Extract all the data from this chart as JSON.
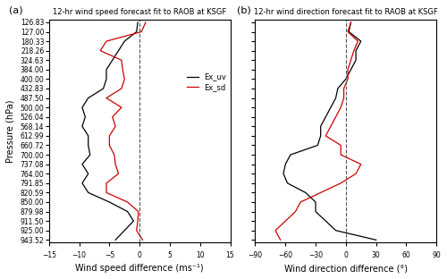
{
  "pressure_levels": [
    "126.83",
    "127.00",
    "180.33",
    "218.26",
    "324.63",
    "384.00",
    "400.00",
    "432.83",
    "487.50",
    "500.00",
    "526.04",
    "568.14",
    "612.99",
    "660.72",
    "700.00",
    "737.08",
    "764.00",
    "791.85",
    "820.59",
    "850.00",
    "879.98",
    "911.50",
    "925.00",
    "943.52"
  ],
  "ws_diff_uv": [
    -0.3,
    -0.5,
    -2.5,
    -3.5,
    -4.5,
    -5.5,
    -5.5,
    -6.0,
    -8.5,
    -9.5,
    -9.0,
    -9.5,
    -8.5,
    -8.5,
    -8.2,
    -9.5,
    -8.5,
    -9.5,
    -8.5,
    -5.0,
    -2.0,
    -1.0,
    -2.5,
    -4.0
  ],
  "ws_diff_sd": [
    1.0,
    0.3,
    -5.5,
    -6.5,
    -3.0,
    -2.8,
    -2.5,
    -3.0,
    -5.5,
    -3.0,
    -4.5,
    -4.0,
    -5.0,
    -5.0,
    -4.2,
    -4.0,
    -3.5,
    -5.5,
    -5.5,
    -2.0,
    -0.2,
    -0.3,
    -0.5,
    0.5
  ],
  "wd_diff_uv": [
    5.0,
    3.0,
    15.0,
    10.0,
    10.0,
    5.0,
    0.0,
    -8.0,
    -10.0,
    -15.0,
    -20.0,
    -25.0,
    -25.0,
    -28.0,
    -55.0,
    -60.0,
    -62.0,
    -58.0,
    -40.0,
    -30.0,
    -30.0,
    -20.0,
    -10.0,
    30.0
  ],
  "wd_diff_sd": [
    5.0,
    2.0,
    12.0,
    8.0,
    5.0,
    2.0,
    2.0,
    -2.0,
    -2.0,
    -5.0,
    -10.0,
    -15.0,
    -20.0,
    -5.0,
    -5.0,
    15.0,
    10.0,
    -5.0,
    -25.0,
    -45.0,
    -50.0,
    -60.0,
    -70.0,
    -65.0
  ],
  "title_left": "12-hr wind speed forecast fit to RAOB at KSGF",
  "title_right": "12-hr wind direction forecast fit to RAOB at KSGF",
  "label_left": "(a)",
  "label_right": "(b)",
  "xlabel_left": "Wind speed difference (ms⁻¹)",
  "xlabel_right": "Wind direction difference (°)",
  "ylabel": "Pressure (hPa)",
  "xlim_left": [
    -15,
    15
  ],
  "xlim_right": [
    -90,
    90
  ],
  "xticks_left": [
    -15,
    -10,
    -5,
    0,
    5,
    10,
    15
  ],
  "xticks_right": [
    -90,
    -60,
    -30,
    0,
    30,
    60,
    90
  ],
  "legend_labels": [
    "Ex_uv",
    "Ex_sd"
  ],
  "line_color_uv": "#000000",
  "line_color_sd": "#cc0000",
  "line_width": 0.9,
  "dashed_color": "#555555",
  "tick_fontsize": 5.5,
  "label_fontsize": 7,
  "title_fontsize": 6,
  "legend_fontsize": 6
}
